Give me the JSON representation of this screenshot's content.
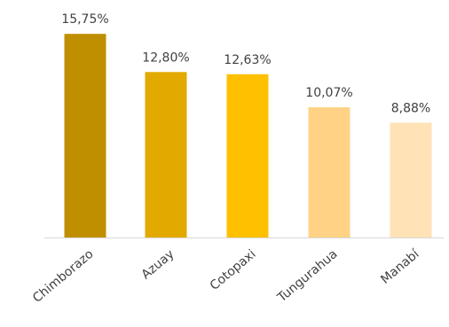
{
  "chart_data": {
    "type": "bar",
    "categories": [
      "Chimborazo",
      "Azuay",
      "Cotopaxi",
      "Tungurahua",
      "Manabí"
    ],
    "values": [
      15.75,
      12.8,
      12.63,
      10.07,
      8.88
    ],
    "value_labels": [
      "15,75%",
      "12,80%",
      "12,63%",
      "10,07%",
      "8,88%"
    ],
    "colors": [
      "#BF8F00",
      "#E2AA00",
      "#FFC000",
      "#FFD285",
      "#FFE2B5"
    ],
    "axis_color": "#D9D9D9",
    "ylim": [
      0,
      17
    ],
    "grid": false,
    "legend": "none",
    "title": "",
    "xlabel": "",
    "ylabel": ""
  }
}
